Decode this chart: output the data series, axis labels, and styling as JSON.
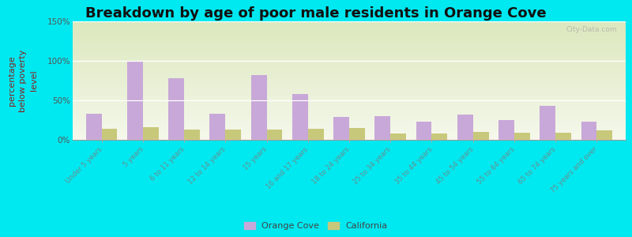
{
  "title": "Breakdown by age of poor male residents in Orange Cove",
  "ylabel_line1": "percentage",
  "ylabel_line2": "below poverty",
  "ylabel_line3": "level",
  "categories": [
    "Under 5 years",
    "5 years",
    "6 to 11 years",
    "12 to 14 years",
    "15 years",
    "16 and 17 years",
    "18 to 24 years",
    "25 to 34 years",
    "35 to 44 years",
    "45 to 54 years",
    "55 to 64 years",
    "65 to 74 years",
    "75 years and over"
  ],
  "orange_cove": [
    33,
    100,
    78,
    33,
    82,
    58,
    29,
    30,
    23,
    32,
    25,
    43,
    23
  ],
  "california": [
    14,
    16,
    13,
    13,
    13,
    14,
    15,
    8,
    8,
    10,
    9,
    9,
    12
  ],
  "bar_color_oc": "#c8a8d8",
  "bar_color_ca": "#c8c87a",
  "outer_bg_color": "#00e8f0",
  "ylim": [
    0,
    150
  ],
  "yticks": [
    0,
    50,
    100,
    150
  ],
  "ytick_labels": [
    "0%",
    "50%",
    "100%",
    "150%"
  ],
  "title_fontsize": 13,
  "ylabel_fontsize": 8,
  "legend_label_oc": "Orange Cove",
  "legend_label_ca": "California",
  "watermark": "City-Data.com"
}
